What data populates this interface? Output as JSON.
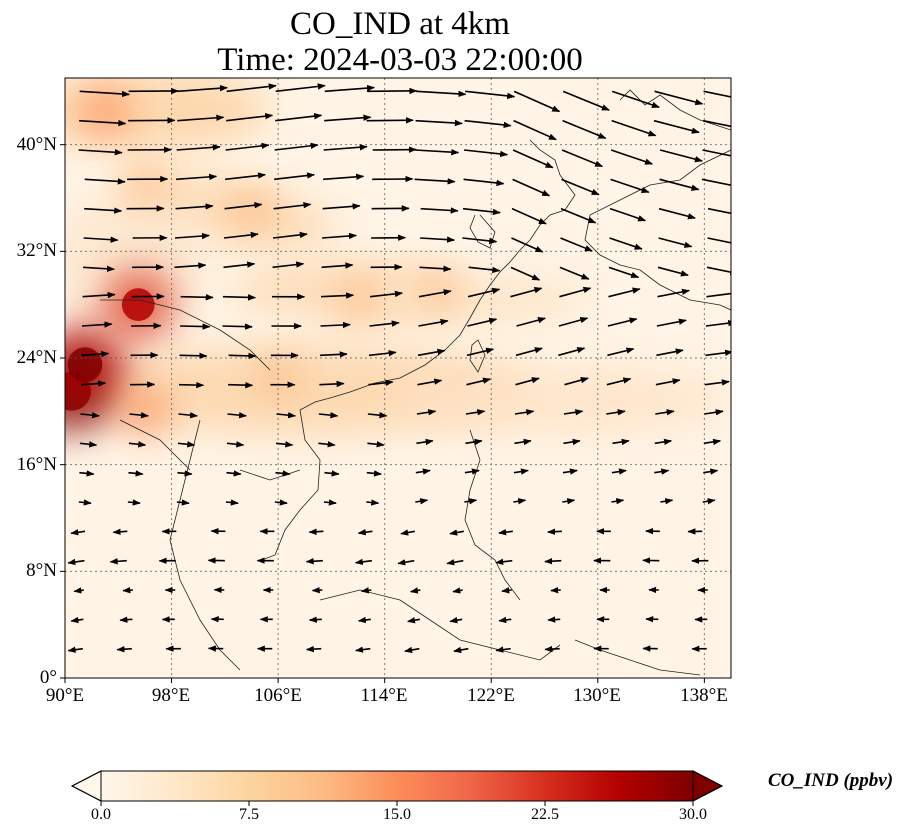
{
  "title": {
    "line1": "CO_IND at 4km",
    "line2": "Time: 2024-03-03 22:00:00"
  },
  "map": {
    "lon_range": [
      90,
      140
    ],
    "lat_range": [
      0,
      45
    ],
    "lon_ticks": [
      "90°E",
      "98°E",
      "106°E",
      "114°E",
      "122°E",
      "130°E",
      "138°E"
    ],
    "lat_ticks": [
      "0°",
      "8°N",
      "16°N",
      "24°N",
      "32°N",
      "40°N"
    ],
    "lon_tick_values": [
      90,
      98,
      106,
      114,
      122,
      130,
      138
    ],
    "lat_tick_values": [
      0,
      8,
      16,
      24,
      32,
      40
    ],
    "gridlines": true
  },
  "colorbar": {
    "label": "CO_IND (ppbv)",
    "ticks": [
      "0.0",
      "7.5",
      "15.0",
      "22.5",
      "30.0"
    ],
    "min": 0,
    "max": 30,
    "extend": "both",
    "colormap": "OrRd",
    "colors": [
      "#fff7ec",
      "#fee8c8",
      "#fdd49e",
      "#fdbb84",
      "#fc8d59",
      "#ef6548",
      "#d7301f",
      "#b30000",
      "#7f0000"
    ]
  },
  "concentration_hotspots": [
    {
      "lon": 90.5,
      "lat": 21.5,
      "value": 30
    },
    {
      "lon": 91.5,
      "lat": 23.5,
      "value": 26
    },
    {
      "lon": 95.5,
      "lat": 28.0,
      "value": 24
    },
    {
      "lon": 93.0,
      "lat": 42.5,
      "value": 14
    },
    {
      "lon": 96.0,
      "lat": 37.0,
      "value": 12
    },
    {
      "lon": 104.0,
      "lat": 35.0,
      "value": 13
    },
    {
      "lon": 112.0,
      "lat": 28.5,
      "value": 12
    },
    {
      "lon": 118.0,
      "lat": 29.0,
      "value": 10
    },
    {
      "lon": 106.0,
      "lat": 22.5,
      "value": 12
    },
    {
      "lon": 96.0,
      "lat": 20.0,
      "value": 14
    }
  ]
}
